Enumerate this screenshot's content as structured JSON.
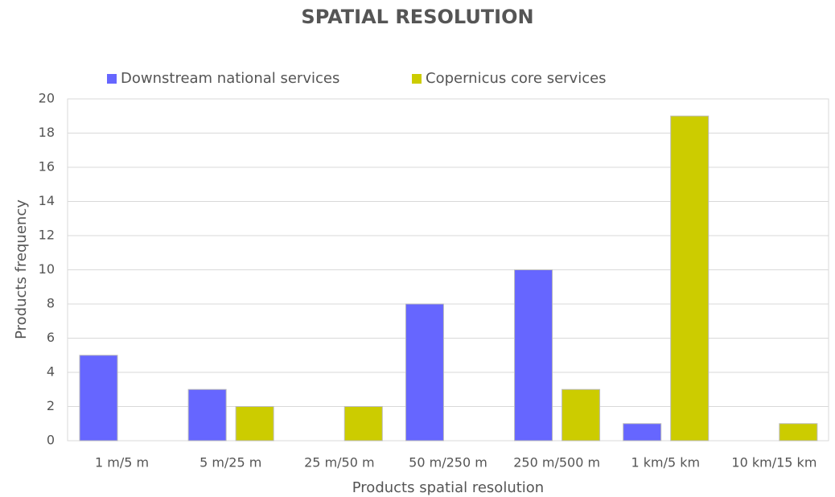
{
  "chart_data": {
    "type": "bar",
    "title": "SPATIAL RESOLUTION",
    "x_label": "Products spatial resolution",
    "y_label": "Products frequency",
    "categories": [
      "1 m/5 m",
      "5 m/25 m",
      "25 m/50 m",
      "50 m/250 m",
      "250 m/500 m",
      "1 km/5 km",
      "10 km/15 km"
    ],
    "series": [
      {
        "name": "Downstream national services",
        "color": "#6666ff",
        "values": [
          5,
          3,
          0,
          8,
          10,
          1,
          0
        ]
      },
      {
        "name": "Copernicus core services",
        "color": "#cccc00",
        "values": [
          0,
          2,
          2,
          0,
          3,
          19,
          1
        ]
      }
    ],
    "ylim": [
      0,
      20
    ],
    "yticks": [
      0,
      2,
      4,
      6,
      8,
      10,
      12,
      14,
      16,
      18,
      20
    ],
    "grid": true,
    "legend": "top"
  }
}
